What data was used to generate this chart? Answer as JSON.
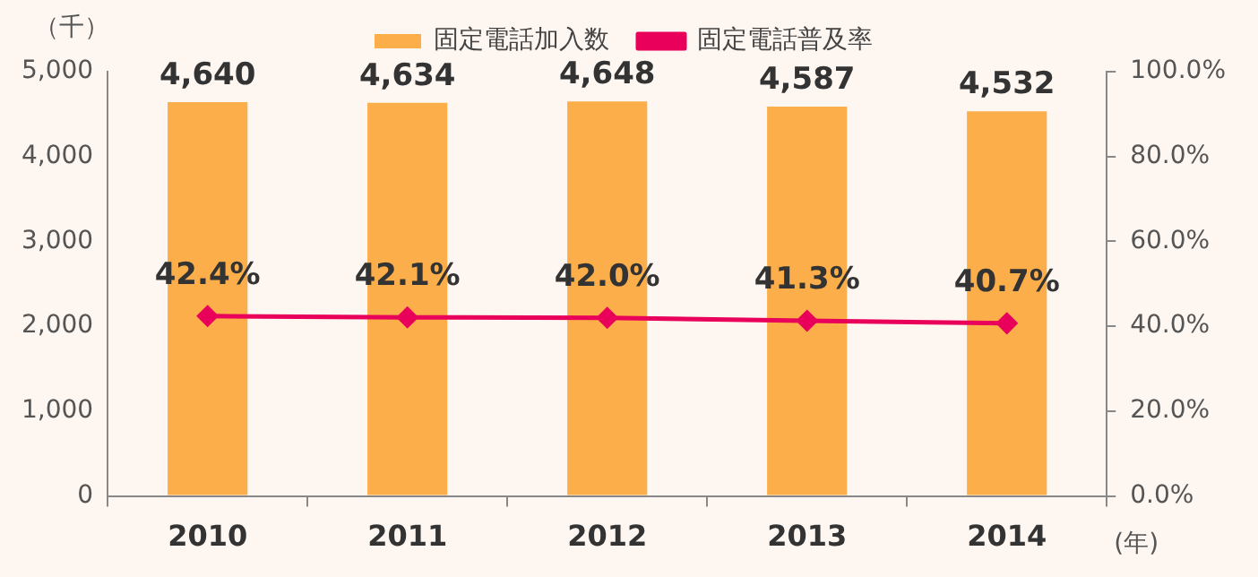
{
  "chart_data": {
    "type": "bar",
    "categories": [
      "2010",
      "2011",
      "2012",
      "2013",
      "2014"
    ],
    "xlabel": "(年)",
    "ylabel": "（千）",
    "series": [
      {
        "name": "固定電話加入数",
        "color": "#fbae4a",
        "values": [
          4640,
          4634,
          4648,
          4587,
          4532
        ],
        "value_labels": [
          "4,640",
          "4,634",
          "4,648",
          "4,587",
          "4,532"
        ]
      },
      {
        "name": "固定電話普及率",
        "type": "line",
        "axis": "y2",
        "color": "#e8005a",
        "marker": "diamond",
        "values": [
          42.4,
          42.1,
          42.0,
          41.3,
          40.7
        ],
        "value_labels": [
          "42.4%",
          "42.1%",
          "42.0%",
          "41.3%",
          "40.7%"
        ]
      }
    ],
    "ylim": [
      0,
      5000
    ],
    "yticks": [
      {
        "value": 0,
        "label": "0"
      },
      {
        "value": 1000,
        "label": "1,000"
      },
      {
        "value": 2000,
        "label": "2,000"
      },
      {
        "value": 3000,
        "label": "3,000"
      },
      {
        "value": 4000,
        "label": "4,000"
      },
      {
        "value": 5000,
        "label": "5,000"
      }
    ],
    "y2lim": [
      0,
      100
    ],
    "y2ticks": [
      {
        "value": 0,
        "label": "0.0%"
      },
      {
        "value": 20,
        "label": "20.0%"
      },
      {
        "value": 40,
        "label": "40.0%"
      },
      {
        "value": 60,
        "label": "60.0%"
      },
      {
        "value": 80,
        "label": "80.0%"
      },
      {
        "value": 100,
        "label": "100.0%"
      }
    ],
    "grid": false,
    "legend": "top"
  }
}
